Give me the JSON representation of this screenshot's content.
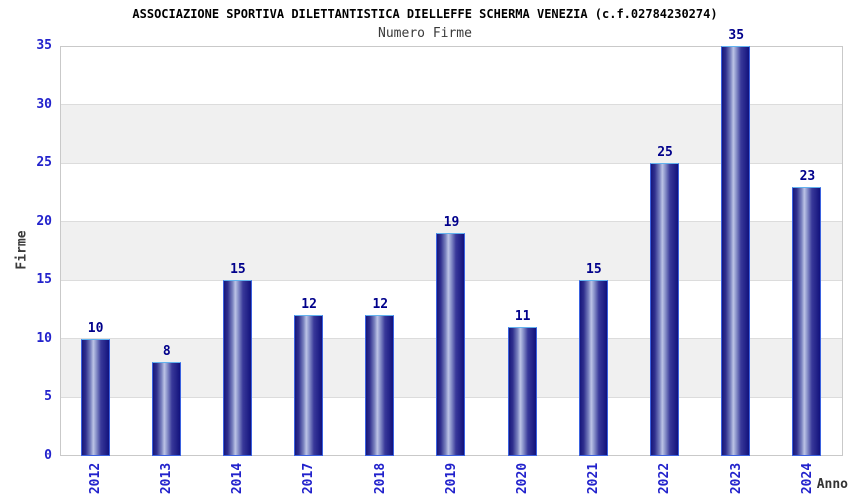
{
  "header": {
    "title": "ASSOCIAZIONE SPORTIVA DILETTANTISTICA DIELLEFFE SCHERMA VENEZIA (c.f.02784230274)",
    "subtitle": "Numero Firme"
  },
  "chart_data": {
    "type": "bar",
    "title": "Numero Firme",
    "categories": [
      "2012",
      "2013",
      "2014",
      "2017",
      "2018",
      "2019",
      "2020",
      "2021",
      "2022",
      "2023",
      "2024"
    ],
    "values": [
      10,
      8,
      15,
      12,
      12,
      19,
      11,
      15,
      25,
      35,
      23
    ],
    "xlabel": "Anno",
    "ylabel": "Firme",
    "ylim": [
      0,
      35
    ],
    "ytick_step": 5,
    "yticks": [
      0,
      5,
      10,
      15,
      20,
      25,
      30,
      35
    ],
    "grid": "alternating-horizontal-bands",
    "legend": "none",
    "colors": {
      "bar_edge_dark": "#17177c",
      "bar_center_light": "#bcc3e6",
      "bar_border": "#3b62e0",
      "bar_border_top": "#62b2ee",
      "tick_label": "#2222cc",
      "value_label": "#00008b",
      "band_gray": "#f0f0f0",
      "band_white": "#ffffff",
      "plot_border": "#c9c9c9",
      "title": "#000000",
      "subtitle": "#3a3a3a"
    }
  }
}
